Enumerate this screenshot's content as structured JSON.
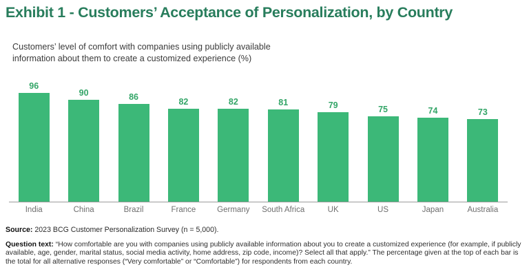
{
  "colors": {
    "title": "#287d5c",
    "subtitle": "#3a3a3a",
    "bar": "#3cb878",
    "value_label": "#33a567",
    "axis_line": "#9a9a9a",
    "category_label": "#6e6e6e"
  },
  "header": {
    "title": "Exhibit 1 - Customers’ Acceptance of Personalization, by Country"
  },
  "chart_data": {
    "type": "bar",
    "title": "Customers’ level of comfort with companies using publicly available information about them to create a customized experience (%)",
    "categories": [
      "India",
      "China",
      "Brazil",
      "France",
      "Germany",
      "South Africa",
      "UK",
      "US",
      "Japan",
      "Australia"
    ],
    "values": [
      96,
      90,
      86,
      82,
      82,
      81,
      79,
      75,
      74,
      73
    ],
    "xlabel": "",
    "ylabel": "",
    "ylim": [
      0,
      100
    ],
    "grid": false,
    "legend": "none",
    "value_labels": "above each bar, green bold",
    "bar_color": "#3cb878"
  },
  "footer": {
    "source_label": "Source:",
    "source_text": " 2023 BCG Customer Personalization Survey (n = 5,000).",
    "question_label": "Question text:",
    "question_text": " “How comfortable are you with companies using publicly available information about you to create a customized experience (for example, if publicly available, age, gender, marital status, social media activity, home address, zip code, income)? Select all that apply.” The percentage given at the top of each bar is the total for all alternative responses (“Very comfortable” or “Comfortable”) for respondents from each country."
  }
}
